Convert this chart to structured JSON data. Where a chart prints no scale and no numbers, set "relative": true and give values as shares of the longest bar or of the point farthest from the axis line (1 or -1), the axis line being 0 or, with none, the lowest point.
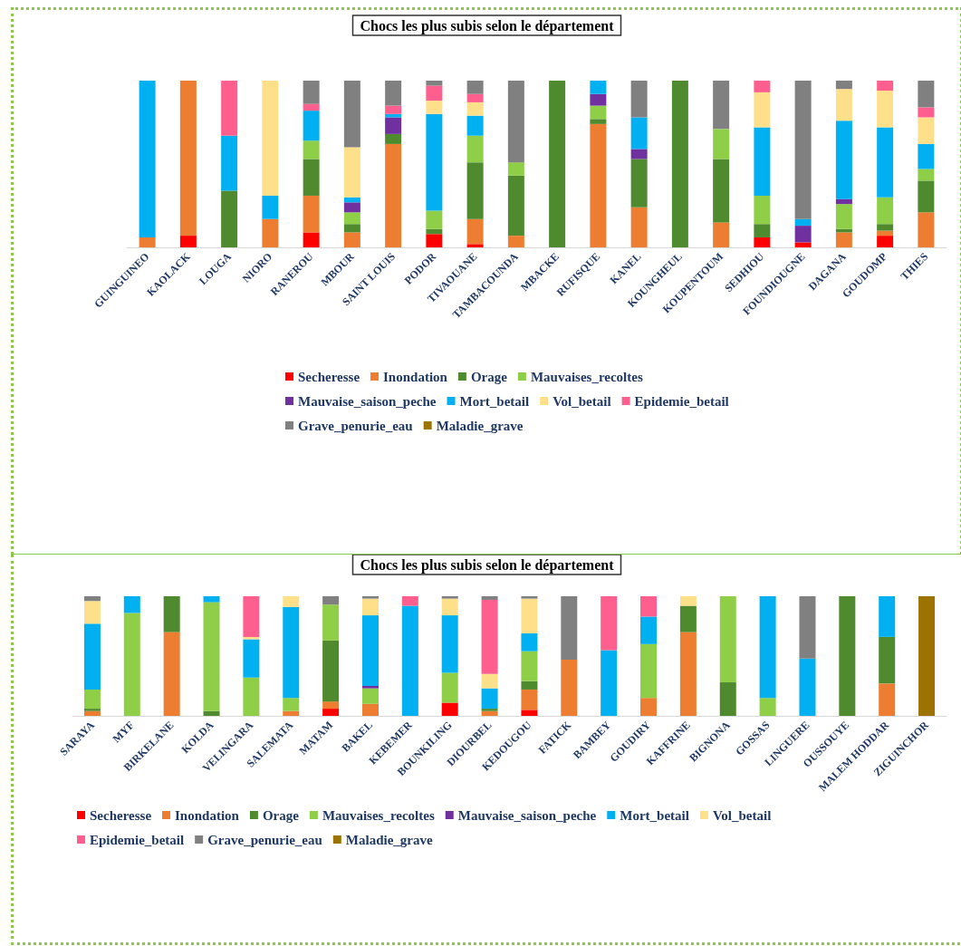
{
  "chart_data": [
    {
      "type": "bar",
      "title": "Chocs les plus subis selon le département",
      "stacked": true,
      "relative": true,
      "legend": "bottom",
      "categories": [
        "GUINGUINEO",
        "KAOLACK",
        "LOUGA",
        "NIORO",
        "RANEROU",
        "MBOUR",
        "SAINT LOUIS",
        "PODOR",
        "TIVAOUANE",
        "TAMBACOUNDA",
        "MBACKE",
        "RUFISQUE",
        "KANEL",
        "KOUNGHEUL",
        "KOUPENTOUM",
        "SEDHIOU",
        "FOUNDIOUGNE",
        "DAGANA",
        "GOUDOMP",
        "THIES"
      ],
      "series": [
        {
          "name": "Secheresse",
          "color": "#ff0000",
          "values": [
            0,
            0.07,
            0,
            0,
            0.09,
            0,
            0,
            0.08,
            0.02,
            0,
            0,
            0,
            0,
            0,
            0,
            0.06,
            0.03,
            0,
            0.07,
            0
          ]
        },
        {
          "name": "Inondation",
          "color": "#ed7d31",
          "values": [
            0.06,
            0.93,
            0,
            0.17,
            0.22,
            0.09,
            0.62,
            0,
            0.15,
            0.07,
            0,
            0.74,
            0.24,
            0,
            0.15,
            0,
            0,
            0.09,
            0.03,
            0.21
          ]
        },
        {
          "name": "Orage",
          "color": "#4f8a2f",
          "values": [
            0,
            0,
            0.34,
            0,
            0.22,
            0.05,
            0.06,
            0.03,
            0.34,
            0.36,
            1,
            0.03,
            0.29,
            1,
            0.38,
            0.08,
            0,
            0.02,
            0.04,
            0.19
          ]
        },
        {
          "name": "Mauvaises_recoltes",
          "color": "#8fcf48",
          "values": [
            0,
            0,
            0,
            0,
            0.11,
            0.07,
            0,
            0.11,
            0.16,
            0.08,
            0,
            0.08,
            0,
            0,
            0.18,
            0.17,
            0,
            0.15,
            0.16,
            0.07
          ]
        },
        {
          "name": "Mauvaise_saison_peche",
          "color": "#7030a0",
          "values": [
            0,
            0,
            0,
            0,
            0,
            0.06,
            0.1,
            0,
            0,
            0,
            0,
            0.07,
            0.06,
            0,
            0,
            0,
            0.1,
            0.03,
            0,
            0
          ]
        },
        {
          "name": "Mort_betail",
          "color": "#00b0f0",
          "values": [
            0.94,
            0,
            0.33,
            0.14,
            0.18,
            0.03,
            0.02,
            0.58,
            0.12,
            0,
            0,
            0.08,
            0.19,
            0,
            0,
            0.41,
            0.04,
            0.47,
            0.42,
            0.15
          ]
        },
        {
          "name": "Vol_betail",
          "color": "#ffe08a",
          "values": [
            0,
            0,
            0,
            0.69,
            0,
            0.3,
            0,
            0.08,
            0.08,
            0,
            0,
            0,
            0,
            0,
            0,
            0.21,
            0,
            0.19,
            0.22,
            0.16
          ]
        },
        {
          "name": "Epidemie_betail",
          "color": "#ff5f8f",
          "values": [
            0,
            0,
            0.33,
            0,
            0.04,
            0,
            0.05,
            0.09,
            0.05,
            0,
            0,
            0,
            0,
            0,
            0,
            0.07,
            0,
            0,
            0.06,
            0.06
          ]
        },
        {
          "name": "Grave_penurie_eau",
          "color": "#808080",
          "values": [
            0,
            0,
            0,
            0,
            0.14,
            0.4,
            0.15,
            0.03,
            0.08,
            0.49,
            0,
            0,
            0.22,
            0,
            0.29,
            0,
            0.83,
            0.05,
            0,
            0.16
          ]
        },
        {
          "name": "Maladie_grave",
          "color": "#9c7300",
          "values": [
            0,
            0,
            0,
            0,
            0,
            0,
            0,
            0,
            0,
            0,
            0,
            0,
            0,
            0,
            0,
            0,
            0,
            0,
            0,
            0
          ]
        }
      ]
    },
    {
      "type": "bar",
      "title": "Chocs les plus subis selon le département",
      "stacked": true,
      "relative": true,
      "legend": "bottom",
      "categories": [
        "SARAYA",
        "MYF",
        "BIRKELANE",
        "KOLDA",
        "VELINGARA",
        "SALEMATA",
        "MATAM",
        "BAKEL",
        "KEBEMER",
        "BOUNKILING",
        "DIOURBEL",
        "KEDOUGOU",
        "FATICK",
        "BAMBEY",
        "GOUDIRY",
        "KAFFRINE",
        "BIGNONA",
        "GOSSAS",
        "LINGUERE",
        "OUSSOUYE",
        "MALEM HODDAR",
        "ZIGUINCHOR"
      ],
      "series": [
        {
          "name": "Secheresse",
          "color": "#ff0000",
          "values": [
            0,
            0,
            0,
            0,
            0,
            0,
            0.06,
            0,
            0,
            0.11,
            0,
            0.05,
            0,
            0,
            0,
            0,
            0,
            0,
            0,
            0,
            0,
            0
          ]
        },
        {
          "name": "Inondation",
          "color": "#ed7d31",
          "values": [
            0.04,
            0,
            0.7,
            0,
            0,
            0.04,
            0.06,
            0.1,
            0,
            0,
            0.04,
            0.17,
            0.47,
            0,
            0.15,
            0.7,
            0,
            0,
            0,
            0,
            0.27,
            0
          ]
        },
        {
          "name": "Orage",
          "color": "#4f8a2f",
          "values": [
            0.02,
            0,
            0.3,
            0.04,
            0,
            0,
            0.51,
            0,
            0,
            0,
            0.02,
            0.07,
            0,
            0,
            0,
            0.22,
            0.28,
            0,
            0,
            1,
            0.39,
            0
          ]
        },
        {
          "name": "Mauvaises_recoltes",
          "color": "#8fcf48",
          "values": [
            0.16,
            0.86,
            0,
            0.91,
            0.32,
            0.11,
            0.3,
            0.13,
            0,
            0.25,
            0,
            0.25,
            0,
            0,
            0.45,
            0,
            0.72,
            0.15,
            0,
            0,
            0,
            0
          ]
        },
        {
          "name": "Mauvaise_saison_peche",
          "color": "#7030a0",
          "values": [
            0,
            0,
            0,
            0,
            0,
            0,
            0,
            0.02,
            0,
            0,
            0,
            0,
            0,
            0,
            0,
            0,
            0,
            0,
            0,
            0,
            0,
            0
          ]
        },
        {
          "name": "Mort_betail",
          "color": "#00b0f0",
          "values": [
            0.55,
            0.14,
            0,
            0.05,
            0.32,
            0.76,
            0,
            0.59,
            0.92,
            0.48,
            0.17,
            0.15,
            0,
            0.55,
            0.23,
            0,
            0,
            0.85,
            0.48,
            0,
            0.34,
            0
          ]
        },
        {
          "name": "Vol_betail",
          "color": "#ffe08a",
          "values": [
            0.19,
            0,
            0,
            0,
            0.02,
            0.09,
            0,
            0.14,
            0,
            0.14,
            0.12,
            0.29,
            0,
            0,
            0,
            0.08,
            0,
            0,
            0,
            0,
            0,
            0
          ]
        },
        {
          "name": "Epidemie_betail",
          "color": "#ff5f8f",
          "values": [
            0,
            0,
            0,
            0,
            0.34,
            0,
            0,
            0,
            0.08,
            0,
            0.62,
            0,
            0,
            0.45,
            0.17,
            0,
            0,
            0,
            0,
            0,
            0,
            0
          ]
        },
        {
          "name": "Grave_penurie_eau",
          "color": "#808080",
          "values": [
            0.04,
            0,
            0,
            0,
            0,
            0,
            0.07,
            0.02,
            0,
            0.02,
            0.03,
            0.02,
            0.53,
            0,
            0,
            0,
            0,
            0,
            0.52,
            0,
            0,
            0
          ]
        },
        {
          "name": "Maladie_grave",
          "color": "#9c7300",
          "values": [
            0,
            0,
            0,
            0,
            0,
            0,
            0,
            0,
            0,
            0,
            0,
            0,
            0,
            0,
            0,
            0,
            0,
            0,
            0,
            0,
            0,
            1
          ]
        }
      ]
    }
  ]
}
